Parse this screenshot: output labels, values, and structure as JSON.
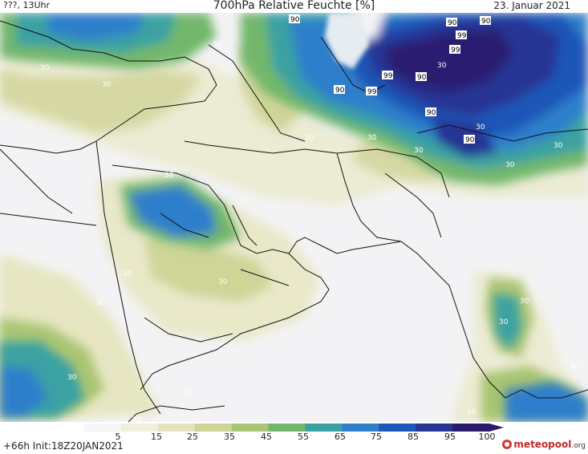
{
  "header": {
    "location_time": "???, 13Uhr",
    "title": "700hPa Relative Feuchte [%]",
    "date": "23. Januar 2021"
  },
  "legend": {
    "ticks": [
      "5",
      "15",
      "25",
      "35",
      "45",
      "55",
      "65",
      "75",
      "85",
      "95",
      "100"
    ],
    "colors": [
      "#f6f6f6",
      "#efefdc",
      "#e3e3bc",
      "#cfd497",
      "#aac573",
      "#72b76c",
      "#3aa1a3",
      "#2f7fcb",
      "#1f57b8",
      "#283594",
      "#2c1a6f"
    ]
  },
  "footer": {
    "forecast": "+66h Init:18Z20JAN2021",
    "brand_a": "meteopool",
    "brand_b": ".org"
  },
  "contour_labels": {
    "l30": "30",
    "l90": "90",
    "l99": "99"
  }
}
